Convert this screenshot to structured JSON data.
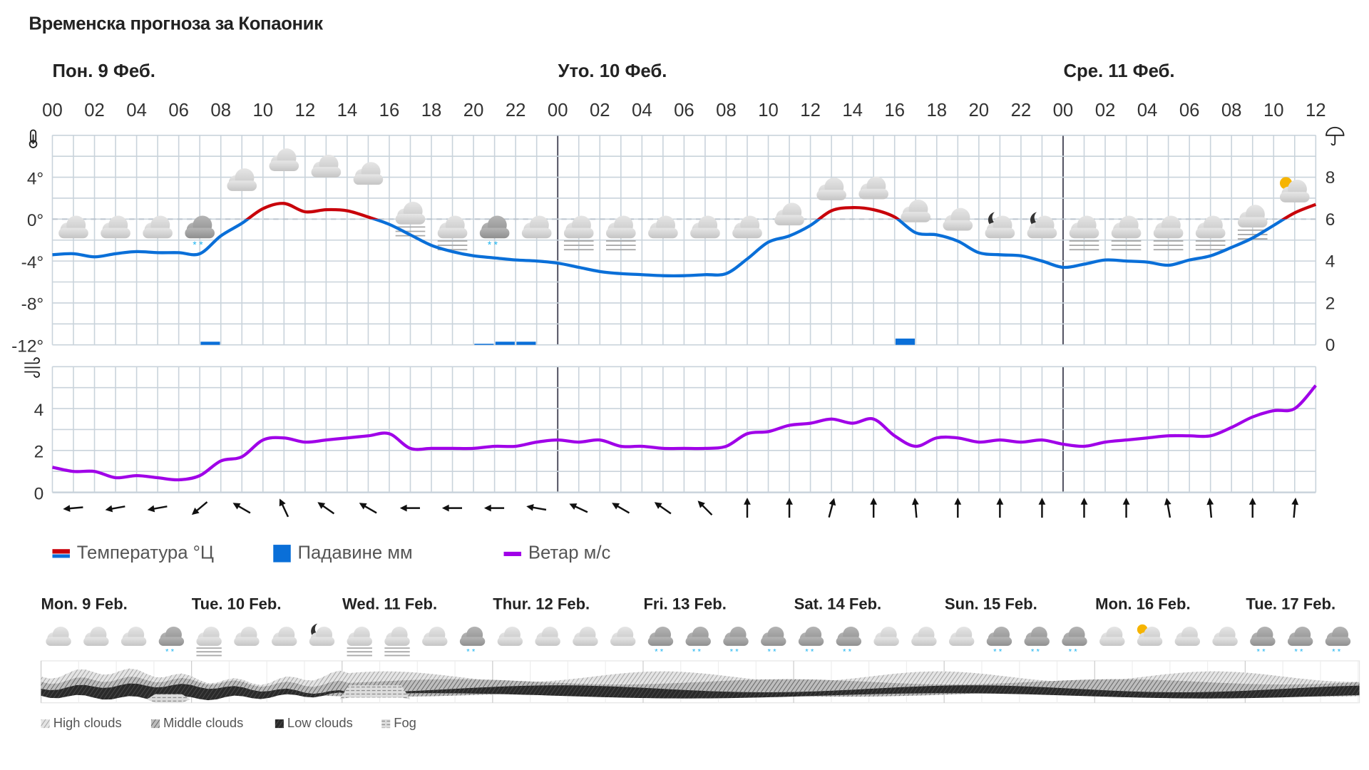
{
  "title": "Временска прогноза за Копаоник",
  "days": [
    "Пон. 9 Феб.",
    "Уто. 10 Феб.",
    "Сре. 11 Феб."
  ],
  "legend": {
    "temperature": "Температура °Ц",
    "precipitation": "Падавине мм",
    "wind": "Ветар м/с"
  },
  "colors": {
    "temp_above": "#c8000a",
    "temp_below": "#0a6fd8",
    "precip": "#0a6fd8",
    "wind": "#a000e8",
    "grid": "#c9d3db"
  },
  "chart_data": [
    {
      "type": "line",
      "title": "",
      "x_tick_labels": [
        "00",
        "02",
        "04",
        "06",
        "08",
        "10",
        "12",
        "14",
        "16",
        "18",
        "20",
        "22",
        "00",
        "02",
        "04",
        "06",
        "08",
        "10",
        "12",
        "14",
        "16",
        "18",
        "20",
        "22",
        "00",
        "02",
        "04",
        "06",
        "08",
        "10",
        "12"
      ],
      "x_hours": "0..60",
      "y_left": {
        "label": "°",
        "ticks": [
          "4°",
          "0°",
          "-4°",
          "-8°",
          "-12°"
        ],
        "range": [
          -12,
          8
        ]
      },
      "y_right": {
        "ticks": [
          "8",
          "6",
          "4",
          "2",
          "0"
        ],
        "range": [
          0,
          10
        ]
      },
      "series": [
        {
          "name": "Температура °Ц",
          "type": "line",
          "values": [
            -3.4,
            -3.3,
            -3.6,
            -3.3,
            -3.1,
            -3.2,
            -3.2,
            -3.3,
            -1.6,
            -0.4,
            1.0,
            1.5,
            0.7,
            0.9,
            0.8,
            0.2,
            -0.5,
            -1.5,
            -2.5,
            -3.1,
            -3.5,
            -3.7,
            -3.9,
            -4.0,
            -4.2,
            -4.6,
            -5.0,
            -5.2,
            -5.3,
            -5.4,
            -5.4,
            -5.3,
            -5.2,
            -3.8,
            -2.2,
            -1.6,
            -0.6,
            0.8,
            1.1,
            0.9,
            0.2,
            -1.3,
            -1.5,
            -2.1,
            -3.2,
            -3.4,
            -3.5,
            -4.0,
            -4.6,
            -4.3,
            -3.9,
            -4.0,
            -4.1,
            -4.4,
            -3.9,
            -3.5,
            -2.7,
            -1.8,
            -0.6,
            0.6,
            1.4
          ]
        },
        {
          "name": "Падавине мм",
          "type": "bar",
          "values": {
            "7": 0.15,
            "20": 0.05,
            "21": 0.15,
            "22": 0.15,
            "40": 0.3
          }
        }
      ],
      "weather_icons": [
        "cloud",
        "cloud",
        "cloud",
        "cloud-snow",
        "cloud",
        "cloud",
        "cloud",
        "cloud",
        "cloud-fog",
        "cloud-fog",
        "cloud-snow",
        "cloud",
        "cloud-fog",
        "cloud-fog",
        "cloud",
        "cloud",
        "cloud",
        "cloud",
        "cloud",
        "cloud",
        "cloud",
        "cloud",
        "moon-cloud",
        "moon-cloud",
        "cloud-fog",
        "cloud-fog",
        "cloud-fog",
        "cloud-fog",
        "cloud-fog",
        "sun-cloud"
      ]
    },
    {
      "type": "line",
      "title": "",
      "y": {
        "ticks": [
          "4",
          "2",
          "0"
        ],
        "range": [
          0,
          6
        ]
      },
      "series": [
        {
          "name": "Ветар м/с",
          "values": [
            1.2,
            1.0,
            1.0,
            0.7,
            0.8,
            0.7,
            0.6,
            0.8,
            1.5,
            1.7,
            2.5,
            2.6,
            2.4,
            2.5,
            2.6,
            2.7,
            2.8,
            2.1,
            2.1,
            2.1,
            2.1,
            2.2,
            2.2,
            2.4,
            2.5,
            2.4,
            2.5,
            2.2,
            2.2,
            2.1,
            2.1,
            2.1,
            2.2,
            2.8,
            2.9,
            3.2,
            3.3,
            3.5,
            3.3,
            3.5,
            2.7,
            2.2,
            2.6,
            2.6,
            2.4,
            2.5,
            2.4,
            2.5,
            2.3,
            2.2,
            2.4,
            2.5,
            2.6,
            2.7,
            2.7,
            2.7,
            3.1,
            3.6,
            3.9,
            4.0,
            5.1
          ]
        }
      ],
      "wind_direction_arrows_deg": [
        -95,
        -100,
        -100,
        -130,
        -60,
        -25,
        -55,
        -60,
        -90,
        -90,
        -90,
        -80,
        -65,
        -60,
        -55,
        -45,
        0,
        0,
        15,
        0,
        -5,
        0,
        0,
        0,
        0,
        0,
        -10,
        -5,
        0,
        5
      ]
    }
  ],
  "meteogram": {
    "days": [
      "Mon. 9 Feb.",
      "Tue. 10 Feb.",
      "Wed. 11 Feb.",
      "Thur. 12 Feb.",
      "Fri. 13 Feb.",
      "Sat. 14 Feb.",
      "Sun. 15 Feb.",
      "Mon. 16 Feb.",
      "Tue. 17 Feb."
    ],
    "icons": [
      "cloud",
      "cloud",
      "cloud",
      "cloud-snow",
      "cloud-fog",
      "cloud",
      "cloud",
      "moon-cloud",
      "cloud-fog",
      "cloud-fog",
      "cloud",
      "cloud-snow-dark",
      "cloud",
      "cloud",
      "cloud",
      "cloud",
      "cloud-snow-dark",
      "cloud-snow-dark",
      "cloud-snow-dark",
      "cloud-snow-dark",
      "cloud-snow",
      "cloud-snow",
      "cloud",
      "cloud",
      "cloud",
      "cloud-snow-dark",
      "cloud-snow-dark",
      "cloud-snow-dark",
      "cloud",
      "sun-cloud",
      "cloud",
      "cloud",
      "cloud-snow-dark",
      "cloud-snow-dark",
      "cloud-snow-dark"
    ],
    "legend": [
      "High clouds",
      "Middle clouds",
      "Low clouds",
      "Fog"
    ]
  }
}
